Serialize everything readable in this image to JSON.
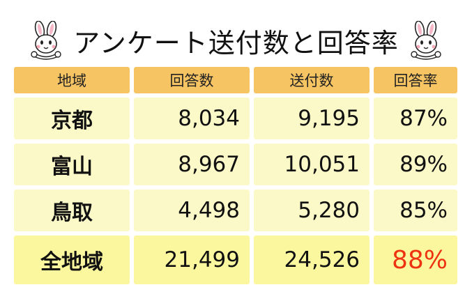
{
  "title": "アンケート送付数と回答率",
  "table": {
    "headers": [
      "地域",
      "回答数",
      "送付数",
      "回答率"
    ],
    "rows": [
      {
        "region": "京都",
        "responses": "8,034",
        "sent": "9,195",
        "rate": "87%"
      },
      {
        "region": "富山",
        "responses": "8,967",
        "sent": "10,051",
        "rate": "89%"
      },
      {
        "region": "鳥取",
        "responses": "4,498",
        "sent": "5,280",
        "rate": "85%"
      }
    ],
    "total": {
      "region": "全地域",
      "responses": "21,499",
      "sent": "24,526",
      "rate": "88%"
    }
  },
  "colors": {
    "header_bg": "#f7c463",
    "cell_bg": "#fcf9c8",
    "total_bg": "#fbf79e",
    "total_rate": "#ee3311"
  },
  "icons": [
    "rabbit-mascot-icon",
    "rabbit-mascot-icon"
  ]
}
